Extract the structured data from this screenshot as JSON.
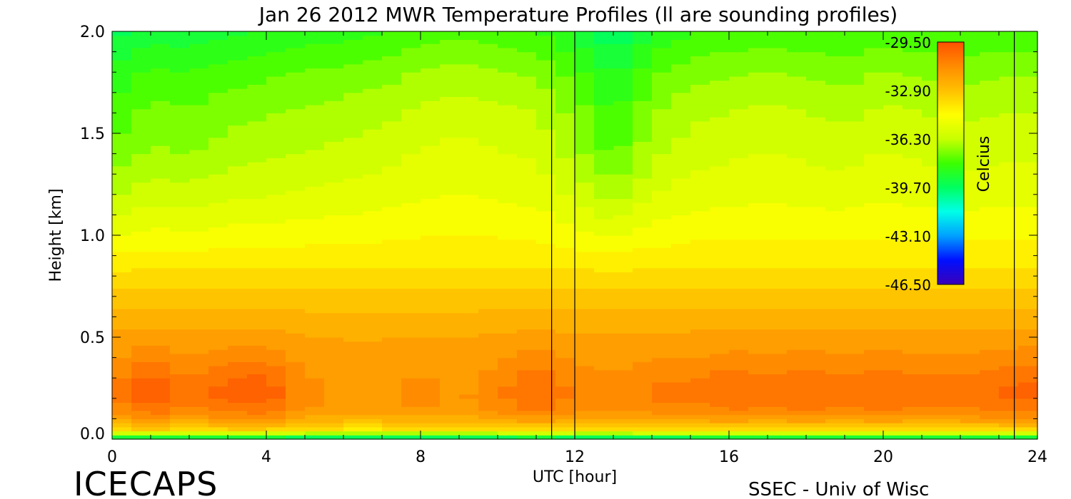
{
  "chart_data": {
    "type": "heatmap",
    "title": "Jan 26 2012 MWR Temperature Profiles (ll are sounding profiles)",
    "xlabel": "UTC [hour]",
    "ylabel": "Height [km]",
    "xlim": [
      0,
      24
    ],
    "ylim": [
      0,
      2.0
    ],
    "x_ticks": [
      "0",
      "4",
      "8",
      "12",
      "16",
      "20",
      "24"
    ],
    "y_ticks": [
      "0.0",
      "0.5",
      "1.0",
      "1.5",
      "2.0"
    ],
    "colorbar": {
      "label": "Celcius",
      "tick_labels": [
        "-29.50",
        "-32.90",
        "-36.30",
        "-39.70",
        "-43.10",
        "-46.50"
      ],
      "range": [
        -46.5,
        -29.5
      ]
    },
    "sounding_times_utc": [
      11.4,
      12.0,
      23.4
    ],
    "heights_km": [
      0.0,
      0.02,
      0.05,
      0.1,
      0.15,
      0.2,
      0.25,
      0.3,
      0.4,
      0.5,
      0.6,
      0.7,
      0.8,
      1.0,
      1.2,
      1.4,
      1.6,
      1.8,
      2.0
    ],
    "times_utc": [
      0,
      1,
      2,
      3,
      4,
      5,
      6,
      7,
      8,
      9,
      10,
      11,
      12,
      13,
      14,
      15,
      16,
      17,
      18,
      19,
      20,
      21,
      22,
      23,
      24
    ],
    "base_profile_c": [
      -41.0,
      -37.5,
      -33.5,
      -31.8,
      -31.0,
      -30.6,
      -30.6,
      -30.8,
      -31.4,
      -31.9,
      -32.5,
      -33.1,
      -33.7,
      -34.6,
      -35.3,
      -35.8,
      -36.3,
      -37.0,
      -38.0
    ],
    "hourly_low_level_anomaly_c": [
      -0.2,
      0.4,
      -0.1,
      0.25,
      0.3,
      -0.3,
      -0.5,
      -0.5,
      -0.3,
      -0.5,
      -0.2,
      0.15,
      -0.2,
      -0.3,
      -0.1,
      -0.1,
      0.1,
      0.0,
      0.1,
      0.0,
      0.1,
      0.0,
      0.0,
      0.15,
      0.2
    ],
    "hourly_upper_level_anomaly_c": [
      -1.0,
      -0.6,
      -0.7,
      -0.5,
      -0.4,
      -0.3,
      -0.2,
      -0.1,
      0.1,
      0.2,
      0.1,
      0.0,
      -0.5,
      -1.2,
      -0.4,
      -0.1,
      0.0,
      0.1,
      0.0,
      -0.1,
      0.1,
      0.0,
      -0.1,
      0.0,
      0.0
    ]
  },
  "footer": {
    "brand": "ICECAPS",
    "credit": "SSEC - Univ of Wisc"
  },
  "colors": {
    "scale": [
      "#3a00b8",
      "#0010ff",
      "#00a0ff",
      "#00ffe8",
      "#00ff60",
      "#3cff00",
      "#c8ff00",
      "#ffff00",
      "#ffc000",
      "#ff8c00",
      "#ff5000"
    ],
    "frame": "#000000",
    "background": "#ffffff"
  }
}
